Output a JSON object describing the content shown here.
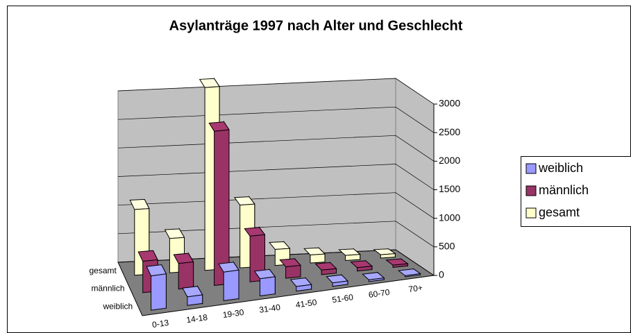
{
  "chart_data": {
    "type": "bar3d",
    "title": "Asylanträge 1997 nach Alter und Geschlecht",
    "categories": [
      "0-13",
      "14-18",
      "19-30",
      "31-40",
      "41-50",
      "51-60",
      "60-70",
      "70+"
    ],
    "series": [
      {
        "name": "weiblich",
        "color": "#9999ff",
        "values": [
          600,
          150,
          500,
          300,
          80,
          60,
          30,
          20
        ]
      },
      {
        "name": "männlich",
        "color": "#993366",
        "values": [
          550,
          450,
          2700,
          800,
          200,
          80,
          60,
          40
        ]
      },
      {
        "name": "gesamt",
        "color": "#ffffcc",
        "values": [
          1150,
          600,
          3200,
          1100,
          280,
          140,
          90,
          60
        ]
      }
    ],
    "ylim": [
      0,
      3000
    ],
    "yticks": [
      0,
      500,
      1000,
      1500,
      2000,
      2500,
      3000
    ],
    "grid": true,
    "legend": "right"
  }
}
